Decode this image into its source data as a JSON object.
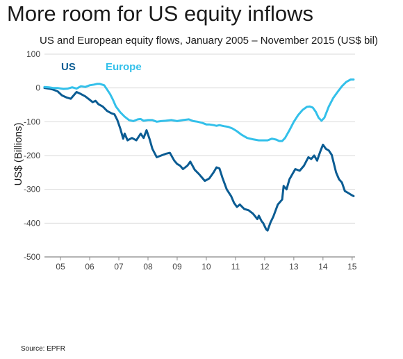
{
  "title": "More room for US equity inflows",
  "subtitle": "US and European equity flows, January 2005 – November 2015 (US$ bil)",
  "source": "Source: EPFR",
  "colors": {
    "us": "#0b5c93",
    "europe": "#33c0ea",
    "grid": "#d9d9d9",
    "axis": "#888888"
  },
  "chart_data": {
    "type": "line",
    "title": "US and European equity flows, January 2005 – November 2015 (US$ bil)",
    "ylabel": "US$ (Billions)",
    "xlabel": "",
    "ylim": [
      -500,
      100
    ],
    "xlim": [
      2004.45,
      2015.1
    ],
    "yticks": [
      100,
      0,
      -100,
      -200,
      -300,
      -400,
      -500
    ],
    "ytick_labels": [
      "100",
      "0",
      "-100",
      "-200",
      "-300",
      "-400",
      "-500"
    ],
    "xticks": [
      2005,
      2006,
      2007,
      2008,
      2009,
      2010,
      2011,
      2012,
      2013,
      2014,
      2015
    ],
    "xtick_labels": [
      "05",
      "06",
      "07",
      "08",
      "09",
      "10",
      "11",
      "12",
      "13",
      "14",
      "15"
    ],
    "grid": "horizontal",
    "legend": "top-left",
    "series": [
      {
        "name": "US",
        "color": "#0b5c93",
        "x": [
          2004.45,
          2004.6,
          2004.75,
          2004.9,
          2005.05,
          2005.2,
          2005.35,
          2005.45,
          2005.55,
          2005.7,
          2005.85,
          2006.0,
          2006.1,
          2006.2,
          2006.3,
          2006.45,
          2006.6,
          2006.75,
          2006.85,
          2006.95,
          2007.05,
          2007.15,
          2007.2,
          2007.3,
          2007.45,
          2007.6,
          2007.75,
          2007.85,
          2007.95,
          2008.05,
          2008.15,
          2008.3,
          2008.45,
          2008.6,
          2008.75,
          2008.9,
          2009.0,
          2009.1,
          2009.2,
          2009.35,
          2009.45,
          2009.6,
          2009.75,
          2009.85,
          2009.95,
          2010.1,
          2010.25,
          2010.35,
          2010.45,
          2010.55,
          2010.7,
          2010.85,
          2010.95,
          2011.05,
          2011.15,
          2011.3,
          2011.45,
          2011.6,
          2011.75,
          2011.8,
          2011.9,
          2011.95,
          2012.05,
          2012.1,
          2012.2,
          2012.3,
          2012.45,
          2012.6,
          2012.65,
          2012.75,
          2012.85,
          2012.95,
          2013.05,
          2013.2,
          2013.35,
          2013.5,
          2013.6,
          2013.7,
          2013.8,
          2013.9,
          2014.0,
          2014.1,
          2014.2,
          2014.3,
          2014.45,
          2014.55,
          2014.65,
          2014.75,
          2014.85,
          2015.0,
          2015.05
        ],
        "values": [
          0,
          -2,
          -5,
          -10,
          -22,
          -28,
          -32,
          -22,
          -12,
          -18,
          -25,
          -35,
          -42,
          -38,
          -48,
          -55,
          -68,
          -75,
          -78,
          -95,
          -120,
          -150,
          -135,
          -155,
          -148,
          -155,
          -135,
          -148,
          -125,
          -150,
          -180,
          -205,
          -200,
          -195,
          -192,
          -215,
          -225,
          -230,
          -240,
          -230,
          -218,
          -242,
          -255,
          -265,
          -275,
          -268,
          -250,
          -235,
          -238,
          -265,
          -300,
          -320,
          -340,
          -352,
          -345,
          -358,
          -362,
          -372,
          -388,
          -378,
          -395,
          -400,
          -418,
          -422,
          -398,
          -380,
          -345,
          -330,
          -290,
          -300,
          -270,
          -255,
          -240,
          -245,
          -230,
          -205,
          -210,
          -200,
          -215,
          -190,
          -168,
          -180,
          -185,
          -198,
          -250,
          -270,
          -280,
          -305,
          -310,
          -318,
          -320
        ]
      },
      {
        "name": "Europe",
        "color": "#33c0ea",
        "x": [
          2004.45,
          2004.6,
          2004.75,
          2004.9,
          2005.1,
          2005.25,
          2005.4,
          2005.55,
          2005.7,
          2005.85,
          2006.0,
          2006.15,
          2006.25,
          2006.35,
          2006.5,
          2006.6,
          2006.7,
          2006.8,
          2006.9,
          2007.05,
          2007.2,
          2007.35,
          2007.5,
          2007.65,
          2007.75,
          2007.85,
          2008.0,
          2008.15,
          2008.3,
          2008.45,
          2008.6,
          2008.8,
          2009.0,
          2009.2,
          2009.4,
          2009.55,
          2009.7,
          2009.85,
          2010.0,
          2010.1,
          2010.25,
          2010.35,
          2010.45,
          2010.6,
          2010.75,
          2010.9,
          2011.05,
          2011.2,
          2011.4,
          2011.6,
          2011.8,
          2011.95,
          2012.1,
          2012.25,
          2012.4,
          2012.5,
          2012.6,
          2012.7,
          2012.85,
          2013.0,
          2013.15,
          2013.3,
          2013.45,
          2013.55,
          2013.65,
          2013.75,
          2013.85,
          2013.95,
          2014.05,
          2014.2,
          2014.35,
          2014.5,
          2014.65,
          2014.8,
          2014.95,
          2015.05
        ],
        "values": [
          3,
          2,
          0,
          0,
          -3,
          -2,
          2,
          -2,
          5,
          3,
          8,
          10,
          12,
          12,
          8,
          -5,
          -18,
          -35,
          -55,
          -72,
          -85,
          -95,
          -98,
          -93,
          -92,
          -97,
          -95,
          -95,
          -100,
          -98,
          -97,
          -95,
          -98,
          -95,
          -93,
          -98,
          -100,
          -103,
          -108,
          -108,
          -110,
          -112,
          -110,
          -113,
          -115,
          -120,
          -128,
          -138,
          -148,
          -152,
          -155,
          -155,
          -155,
          -150,
          -153,
          -157,
          -157,
          -148,
          -125,
          -100,
          -80,
          -65,
          -56,
          -55,
          -58,
          -70,
          -88,
          -97,
          -88,
          -55,
          -30,
          -12,
          5,
          18,
          25,
          25
        ]
      }
    ]
  }
}
